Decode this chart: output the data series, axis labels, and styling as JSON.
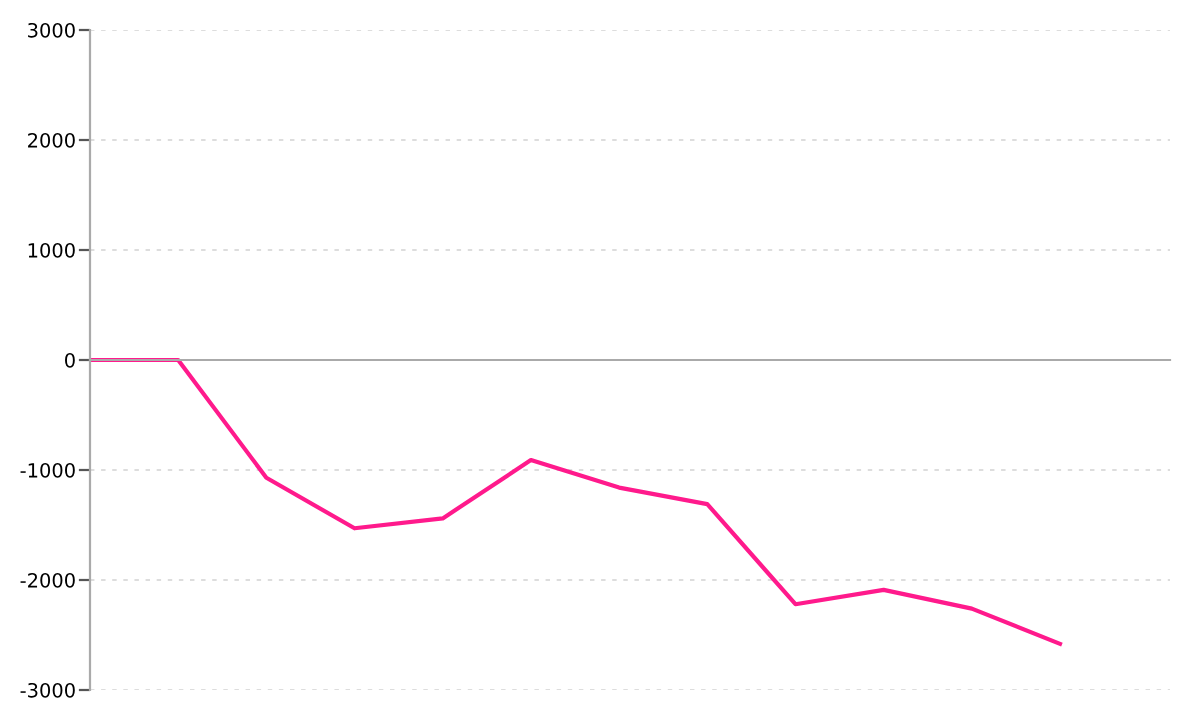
{
  "chart_data": {
    "type": "line",
    "categories": [
      null,
      null,
      null,
      null,
      null,
      null,
      null,
      null,
      null,
      null,
      null,
      null
    ],
    "series": [
      {
        "color": "#ff1a8c",
        "values": [
          0,
          0,
          -1070,
          -1530,
          -1440,
          -910,
          -1160,
          -1310,
          -2220,
          -2090,
          -2260,
          -2580
        ]
      }
    ],
    "ylim": [
      -3000,
      3000
    ],
    "yticks": [
      -3000,
      -2000,
      -1000,
      0,
      1000,
      2000,
      3000
    ],
    "grid": "y",
    "line_style": "solid"
  }
}
